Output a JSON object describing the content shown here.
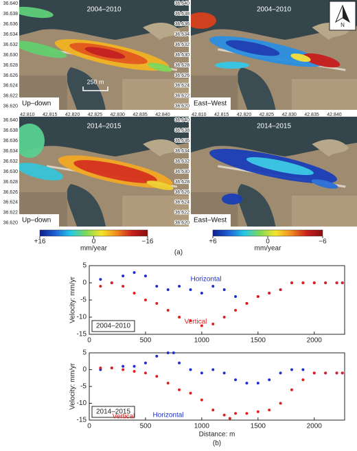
{
  "maps": {
    "lat_lim": [
      36.6193,
      36.6407
    ],
    "lon_lim": [
      42.8082,
      42.8458
    ],
    "lat_ticks": [
      {
        "value": 36.64,
        "label": "36.640"
      },
      {
        "value": 36.638,
        "label": "36.638"
      },
      {
        "value": 36.636,
        "label": "36.636"
      },
      {
        "value": 36.634,
        "label": "36.634"
      },
      {
        "value": 36.632,
        "label": "36.632"
      },
      {
        "value": 36.63,
        "label": "36.630"
      },
      {
        "value": 36.628,
        "label": "36.628"
      },
      {
        "value": 36.626,
        "label": "36.626"
      },
      {
        "value": 36.624,
        "label": "36.624"
      },
      {
        "value": 36.622,
        "label": "36.622"
      },
      {
        "value": 36.62,
        "label": "36.620"
      }
    ],
    "lon_ticks": [
      {
        "value": 42.81,
        "label": "42.810"
      },
      {
        "value": 42.815,
        "label": "42.815"
      },
      {
        "value": 42.82,
        "label": "42.820"
      },
      {
        "value": 42.825,
        "label": "42.825"
      },
      {
        "value": 42.83,
        "label": "42.830"
      },
      {
        "value": 42.835,
        "label": "42.835"
      },
      {
        "value": 42.84,
        "label": "42.840"
      }
    ],
    "panels": [
      {
        "period": "2004–2010",
        "component": "Up–down"
      },
      {
        "period": "2004–2010",
        "component": "East–West"
      },
      {
        "period": "2014–2015",
        "component": "Up–down"
      },
      {
        "period": "2014–2015",
        "component": "East–West"
      }
    ],
    "scale_bar": "250 m",
    "north": "N",
    "colorbars": [
      {
        "lim": [
          16,
          -16
        ],
        "unit": "mm/year",
        "ticks": [
          {
            "value": 16,
            "label": "+16"
          },
          0,
          {
            "value": -16,
            "label": "−16"
          }
        ],
        "colors": [
          "#0b1e8e",
          "#1f5fd6",
          "#22c8e8",
          "#7ed957",
          "#f5e52a",
          "#f08a1e",
          "#c81e1e",
          "#8a0f0f"
        ]
      },
      {
        "lim": [
          6,
          -6
        ],
        "unit": "mm/year",
        "ticks": [
          {
            "value": 6,
            "label": "+6"
          },
          0,
          {
            "value": -6,
            "label": "−6"
          }
        ],
        "colors": [
          "#0b1e8e",
          "#1f5fd6",
          "#22c8e8",
          "#7ed957",
          "#f5e52a",
          "#f08a1e",
          "#c81e1e",
          "#8a0f0f"
        ]
      }
    ]
  },
  "captions": [
    "(a)",
    "(b)"
  ],
  "chart_data": [
    {
      "type": "scatter",
      "label": "2004–2010",
      "ylabel": "Velocity: mm/yr",
      "xlim": [
        0,
        2270
      ],
      "ylim": [
        -15,
        5
      ],
      "xticks": [
        0,
        500,
        1000,
        1500,
        2000
      ],
      "yticks": [
        -15,
        -10,
        -5,
        0,
        5
      ],
      "series": [
        {
          "name": "Horizontal",
          "color": "#1f2fd0",
          "x": [
            100,
            200,
            300,
            400,
            500,
            600,
            700,
            800,
            900,
            1000,
            1100,
            1200,
            1300,
            1400,
            1500,
            1600,
            1700,
            1800,
            1900,
            2000,
            2100,
            2200,
            2250
          ],
          "values": [
            1,
            0,
            2,
            3,
            2,
            -1,
            -2,
            -1,
            -2,
            -3,
            -1,
            -2,
            -4,
            -6,
            -4,
            -3,
            -2,
            0,
            0,
            0,
            0,
            0,
            0
          ]
        },
        {
          "name": "Vertical",
          "color": "#e02020",
          "x": [
            100,
            200,
            300,
            400,
            500,
            600,
            700,
            800,
            900,
            1000,
            1100,
            1200,
            1300,
            1400,
            1500,
            1600,
            1700,
            1800,
            1900,
            2000,
            2100,
            2200,
            2250
          ],
          "values": [
            -1,
            0,
            -1,
            -3,
            -5,
            -6,
            -8,
            -10,
            -11,
            -12.5,
            -12,
            -10,
            -8,
            -6,
            -4,
            -3,
            -2,
            0,
            0,
            0,
            0,
            0,
            0
          ]
        }
      ]
    },
    {
      "type": "scatter",
      "label": "2014–2015",
      "ylabel": "Velocity: mm/yr",
      "xlabel": "Distance: m",
      "xlim": [
        0,
        2270
      ],
      "ylim": [
        -15,
        5
      ],
      "xticks": [
        0,
        500,
        1000,
        1500,
        2000
      ],
      "yticks": [
        -15,
        -10,
        -5,
        0,
        5
      ],
      "series": [
        {
          "name": "Horizontal",
          "color": "#1f2fd0",
          "x": [
            100,
            200,
            300,
            400,
            500,
            600,
            700,
            750,
            800,
            900,
            1000,
            1100,
            1200,
            1300,
            1400,
            1500,
            1600,
            1700,
            1800,
            1900,
            2000,
            2100,
            2200,
            2250
          ],
          "values": [
            0,
            0.5,
            1,
            1,
            2,
            4,
            5,
            5,
            2,
            0,
            -1,
            0,
            -1,
            -3,
            -4,
            -4,
            -3,
            -1,
            0,
            0,
            -1,
            -1,
            -1,
            -1
          ]
        },
        {
          "name": "Vertical",
          "color": "#e02020",
          "x": [
            100,
            200,
            300,
            400,
            500,
            600,
            700,
            800,
            900,
            1000,
            1100,
            1200,
            1250,
            1300,
            1400,
            1500,
            1600,
            1700,
            1800,
            1900,
            2000,
            2100,
            2200,
            2250
          ],
          "values": [
            0.5,
            0.5,
            0,
            -0.5,
            -1,
            -2,
            -4,
            -6,
            -7,
            -9,
            -12,
            -13.5,
            -14.5,
            -13,
            -13,
            -12.5,
            -12,
            -10,
            -6,
            -3,
            -1,
            -1,
            -1,
            -1
          ]
        }
      ]
    }
  ]
}
